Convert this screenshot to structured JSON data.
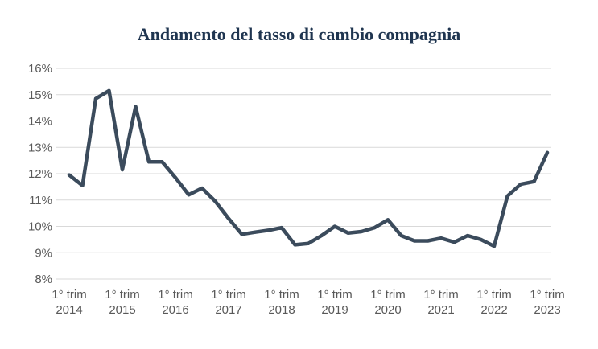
{
  "chart_data": {
    "type": "line",
    "title": "Andamento del tasso di cambio compagnia",
    "xlabel": "",
    "ylabel": "",
    "ylim": [
      8,
      16
    ],
    "y_ticks": [
      "16%",
      "15%",
      "14%",
      "13%",
      "12%",
      "11%",
      "10%",
      "9%",
      "8%"
    ],
    "x_tick_labels": [
      [
        "1° trim",
        "2014"
      ],
      [
        "1° trim",
        "2015"
      ],
      [
        "1° trim",
        "2016"
      ],
      [
        "1° trim",
        "2017"
      ],
      [
        "1° trim",
        "2018"
      ],
      [
        "1° trim",
        "2019"
      ],
      [
        "1° trim",
        "2020"
      ],
      [
        "1° trim",
        "2021"
      ],
      [
        "1° trim",
        "2022"
      ],
      [
        "1° trim",
        "2023"
      ]
    ],
    "grid": true,
    "line_color": "#3b4b5c",
    "series": [
      {
        "values": [
          11.95,
          11.55,
          14.85,
          15.15,
          12.15,
          14.55,
          12.45,
          12.45,
          11.85,
          11.2,
          11.45,
          10.95,
          10.3,
          9.7,
          9.78,
          9.85,
          9.95,
          9.3,
          9.35,
          9.65,
          10.0,
          9.75,
          9.8,
          9.95,
          10.25,
          9.65,
          9.45,
          9.45,
          9.55,
          9.4,
          9.65,
          9.5,
          9.25,
          11.15,
          11.6,
          11.7,
          12.8
        ]
      }
    ]
  }
}
